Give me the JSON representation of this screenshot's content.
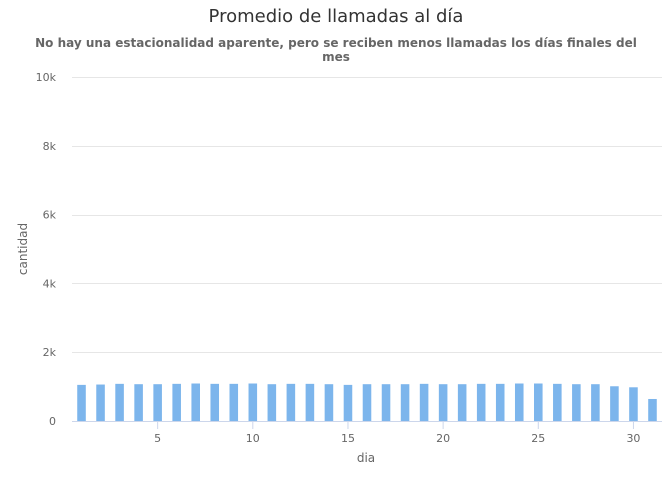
{
  "chart_data": {
    "type": "bar",
    "title": "Promedio de llamadas al día",
    "subtitle": "No hay una estacionalidad aparente, pero se reciben menos llamadas los días finales del mes",
    "xlabel": "dia",
    "ylabel": "cantidad",
    "ylim": [
      0,
      10000
    ],
    "xlim": [
      0.5,
      31.5
    ],
    "yticks": [
      0,
      2000,
      4000,
      6000,
      8000,
      10000
    ],
    "ytick_labels": [
      "0",
      "2k",
      "4k",
      "6k",
      "8k",
      "10k"
    ],
    "xticks": [
      5,
      10,
      15,
      20,
      25,
      30
    ],
    "xtick_labels": [
      "5",
      "10",
      "15",
      "20",
      "25",
      "30"
    ],
    "grid": true,
    "color": "#7cb5ec",
    "categories": [
      1,
      2,
      3,
      4,
      5,
      6,
      7,
      8,
      9,
      10,
      11,
      12,
      13,
      14,
      15,
      16,
      17,
      18,
      19,
      20,
      21,
      22,
      23,
      24,
      25,
      26,
      27,
      28,
      29,
      30,
      31
    ],
    "values": [
      1050,
      1060,
      1080,
      1070,
      1070,
      1080,
      1090,
      1080,
      1080,
      1090,
      1070,
      1080,
      1080,
      1070,
      1050,
      1070,
      1070,
      1070,
      1080,
      1070,
      1070,
      1080,
      1080,
      1090,
      1090,
      1080,
      1070,
      1070,
      1010,
      980,
      640
    ]
  }
}
